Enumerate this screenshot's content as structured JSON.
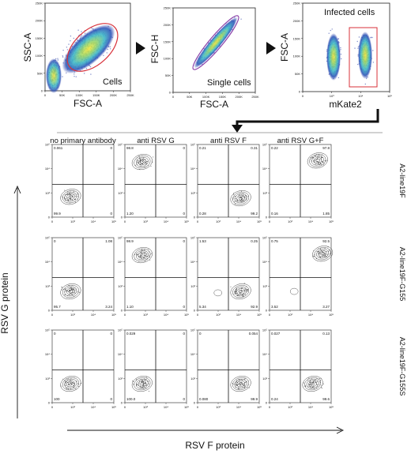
{
  "top_panels": [
    {
      "xlabel": "FSC-A",
      "ylabel": "SSC-A",
      "gate_label": "Cells",
      "xticks": [
        "0",
        "50K",
        "100K",
        "150K",
        "200K",
        "250K"
      ],
      "yticks": [
        "0",
        "50K",
        "100K",
        "150K",
        "200K",
        "250K"
      ]
    },
    {
      "xlabel": "FSC-A",
      "ylabel": "FSC-H",
      "gate_label": "Single cells",
      "xticks": [
        "0",
        "50K",
        "100K",
        "150K",
        "200K",
        "250K"
      ],
      "yticks": [
        "0",
        "50K",
        "100K",
        "150K",
        "200K",
        "250K"
      ]
    },
    {
      "xlabel": "mKate2",
      "ylabel": "FSC-A",
      "gate_label": "Infected cells",
      "xticks": [
        "0",
        "10³",
        "10⁴",
        "10⁵"
      ],
      "yticks": [
        "0",
        "50K",
        "100K",
        "150K",
        "200K",
        "250K"
      ]
    }
  ],
  "grid": {
    "column_headers": [
      "no primary antibody",
      "anti RSV G",
      "anti RSV F",
      "anti RSV G+F"
    ],
    "row_labels": [
      "A2-line19F",
      "A2-line19F-G155",
      "A2-line19F-G155S"
    ],
    "y_axis_label": "RSV G protein",
    "x_axis_label": "RSV F protein",
    "ticks": [
      "0",
      "10³",
      "10⁴",
      "10⁵"
    ],
    "quadrants": [
      [
        {
          "ul": "0.061",
          "ur": "0",
          "ll": "99.9",
          "lr": "0"
        },
        {
          "ul": "98.8",
          "ur": "0",
          "ll": "1.20",
          "lr": "0"
        },
        {
          "ul": "0.21",
          "ur": "0.31",
          "ll": "0.28",
          "lr": "99.2"
        },
        {
          "ul": "0.22",
          "ur": "97.8",
          "ll": "0.16",
          "lr": "1.85"
        }
      ],
      [
        {
          "ul": "0",
          "ur": "1.08",
          "ll": "95.7",
          "lr": "3.24"
        },
        {
          "ul": "98.9",
          "ur": "0",
          "ll": "1.10",
          "lr": "0"
        },
        {
          "ul": "1.53",
          "ur": "0.25",
          "ll": "5.34",
          "lr": "92.9"
        },
        {
          "ul": "0.75",
          "ur": "92.5",
          "ll": "3.52",
          "lr": "3.27"
        }
      ],
      [
        {
          "ul": "0",
          "ur": "0",
          "ll": "100",
          "lr": "0"
        },
        {
          "ul": "0.029",
          "ur": "0",
          "ll": "100.0",
          "lr": "0"
        },
        {
          "ul": "0",
          "ur": "0.054",
          "ll": "0.080",
          "lr": "99.9"
        },
        {
          "ul": "0.027",
          "ur": "0.13",
          "ll": "0.24",
          "lr": "99.6"
        }
      ]
    ]
  },
  "colors": {
    "gate": "#d8313a",
    "density_low": "#2c3fa8",
    "density_mid": "#35b5c9",
    "density_high": "#f2e33a"
  }
}
